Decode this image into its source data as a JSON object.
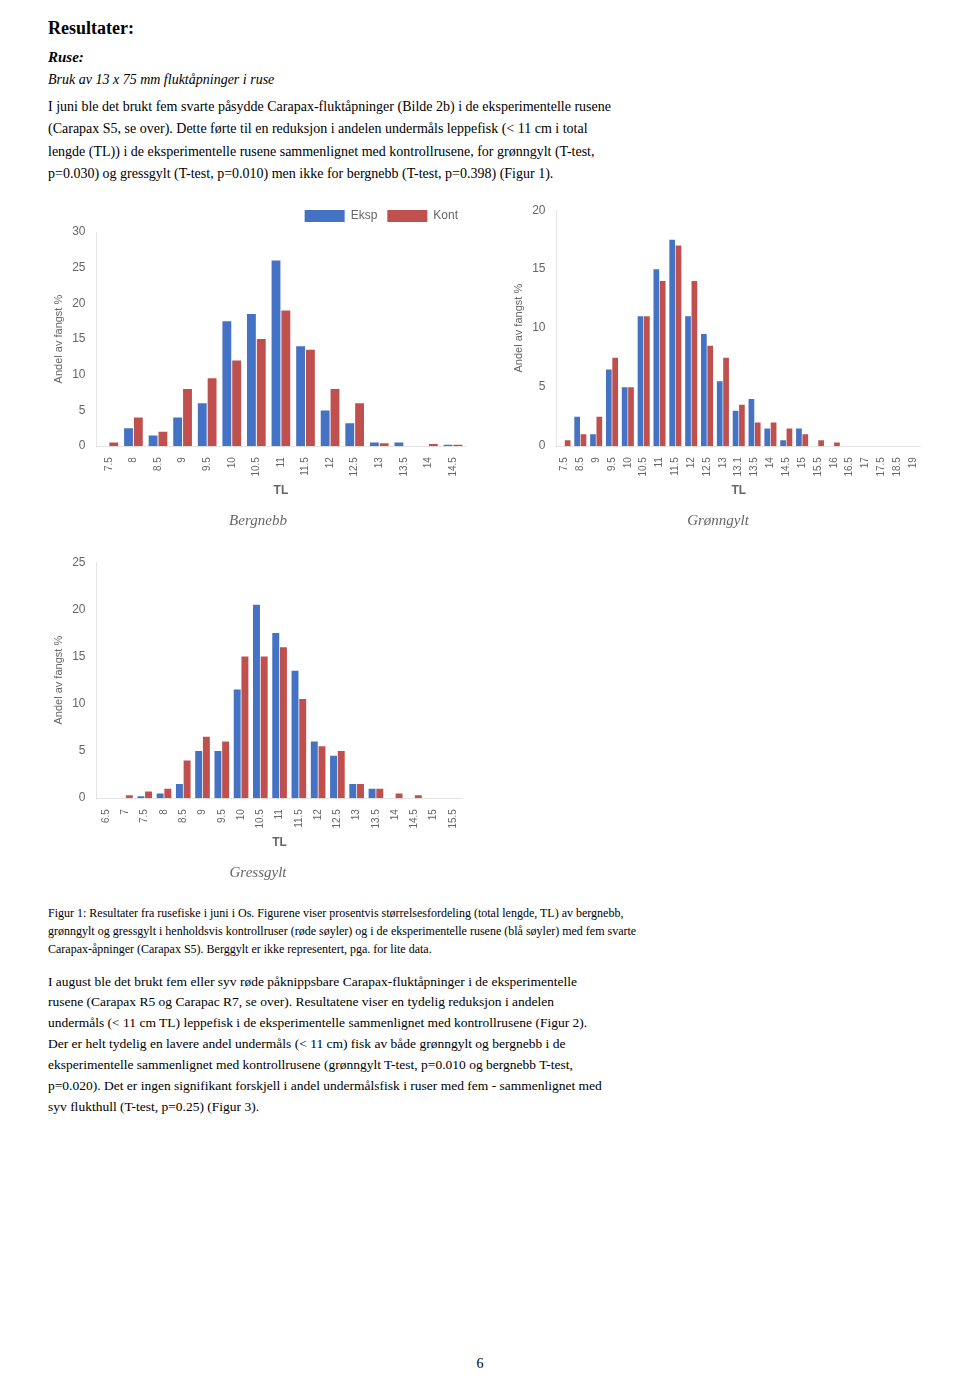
{
  "page_title": "Resultater:",
  "subtitle": "Ruse:",
  "subtitle2": "Bruk av 13 x 75 mm fluktåpninger i ruse",
  "body_text_lines": [
    "I juni ble det brukt fem svarte påsydde Carapax-fluktåpninger (Bilde 2b) i de eksperimentelle rusene",
    "(Carapax S5, se over). Dette førte til en reduksjon i andelen undermåls leppefisk (< 11 cm i total",
    "lengde (TL)) i de eksperimentelle rusene sammenlignet med kontrollrusene, for grønngylt (T-test,",
    "p=0.030) og gressgylt (T-test, p=0.010) men ikke for bergnebb (T-test, p=0.398) (Figur 1)."
  ],
  "chart_data": [
    {
      "type": "bar",
      "title": "Bergnebb",
      "x_label": "TL",
      "y_label": "Andel av fangst %",
      "categories": [
        "7.5",
        "8",
        "8.5",
        "9",
        "9.5",
        "10",
        "10.5",
        "11",
        "11.5",
        "12",
        "12.5",
        "13",
        "13.5",
        "14",
        "14.5"
      ],
      "series": [
        {
          "name": "Eksp",
          "color": "#4472C4",
          "values": [
            0,
            2.5,
            1.5,
            4.0,
            6.0,
            17.5,
            18.5,
            26.0,
            14.0,
            5.0,
            3.2,
            0.5,
            0.5,
            0.0,
            0.2
          ]
        },
        {
          "name": "Kont",
          "color": "#C0504D",
          "values": [
            0.5,
            4.0,
            2.0,
            8.0,
            9.5,
            12.0,
            15.0,
            19.0,
            13.5,
            8.0,
            6.0,
            0.4,
            0.0,
            0.3,
            0.2
          ]
        }
      ],
      "ylim": [
        0,
        30
      ],
      "yticks": [
        0,
        5,
        10,
        15,
        20,
        25,
        30
      ],
      "grid": false,
      "legend": "upper right"
    },
    {
      "type": "bar",
      "title": "Grønngylt",
      "x_label": "TL",
      "y_label": "Andel av fangst %",
      "categories": [
        "7.5",
        "8.5",
        "9",
        "9.5",
        "10",
        "10.5",
        "11",
        "11.5",
        "12",
        "12.5",
        "13",
        "13.1",
        "13.5",
        "14",
        "14.5",
        "15",
        "15.5",
        "16",
        "16.5",
        "17",
        "17.5",
        "18.5",
        "19"
      ],
      "series": [
        {
          "name": "Eksp",
          "color": "#4472C4",
          "values": [
            0,
            2.5,
            1.0,
            6.5,
            5.0,
            11.0,
            15.0,
            17.5,
            11.0,
            9.5,
            5.5,
            3.0,
            4.0,
            1.5,
            0.5,
            1.5,
            0.0,
            0.0,
            0.0,
            0.0,
            0.0,
            0.0,
            0.0
          ]
        },
        {
          "name": "Kont",
          "color": "#C0504D",
          "values": [
            0.5,
            1.0,
            2.5,
            7.5,
            5.0,
            11.0,
            14.0,
            17.0,
            14.0,
            8.5,
            7.5,
            3.5,
            2.0,
            2.0,
            1.5,
            1.0,
            0.5,
            0.3,
            0.0,
            0.0,
            0.0,
            0.0,
            0.0
          ]
        }
      ],
      "ylim": [
        0,
        20
      ],
      "yticks": [
        0,
        5,
        10,
        15,
        20
      ],
      "grid": false,
      "legend": false
    },
    {
      "type": "bar",
      "title": "Gressgylt",
      "x_label": "TL",
      "y_label": "Andel av fangst %",
      "categories": [
        "6.5",
        "7",
        "7.5",
        "8",
        "8.5",
        "9",
        "9.5",
        "10",
        "10.5",
        "11",
        "11.5",
        "12",
        "12.5",
        "13",
        "13.5",
        "14",
        "14.5",
        "15",
        "15.5"
      ],
      "series": [
        {
          "name": "Eksp",
          "color": "#4472C4",
          "values": [
            0.0,
            0.0,
            0.2,
            0.5,
            1.5,
            5.0,
            5.0,
            11.5,
            20.5,
            17.5,
            13.5,
            6.0,
            4.5,
            1.5,
            1.0,
            0.0,
            0.0,
            0.0,
            0.0
          ]
        },
        {
          "name": "Kont",
          "color": "#C0504D",
          "values": [
            0.0,
            0.3,
            0.7,
            1.0,
            4.0,
            6.5,
            6.0,
            15.0,
            15.0,
            16.0,
            10.5,
            5.5,
            5.0,
            1.5,
            1.0,
            0.5,
            0.3,
            0.0,
            0.0
          ]
        }
      ],
      "ylim": [
        0,
        25
      ],
      "yticks": [
        0,
        5,
        10,
        15,
        20,
        25
      ],
      "grid": false,
      "legend": false
    }
  ],
  "caption_lines": [
    "Figur 1: Resultater fra rusefiske i juni i Os. Figurene viser prosentvis størrelsesfordeling (total lengde, TL) av bergnebb,",
    "grønngylt og gressgylt i henholdsvis kontrollruser (røde søyler) og i de eksperimentelle rusene (blå søyler) med fem svarte",
    "Carapax-åpninger (Carapax S5). Berggylt er ikke representert, pga. for lite data."
  ],
  "bottom_text_lines": [
    "I august ble det brukt fem eller syv røde påknippsbare Carapax-fluktåpninger i de eksperimentelle",
    "rusene (Carapax R5 og Carapac R7, se over). Resultatene viser en tydelig reduksjon i andelen",
    "undermåls (< 11 cm TL) leppefisk i de eksperimentelle sammenlignet med kontrollrusene (Figur 2).",
    "Der er helt tydelig en lavere andel undermåls (< 11 cm) fisk av både grønngylt og bergnebb i de",
    "eksperimentelle sammenlignet med kontrollrusene (grønngylt T-test, p=0.010 og bergnebb T-test,",
    "p=0.020). Det er ingen signifikant forskjell i andel undermålsfisk i ruser med fem - sammenlignet med",
    "syv flukthull (T-test, p=0.25) (Figur 3)."
  ],
  "page_number": "6"
}
